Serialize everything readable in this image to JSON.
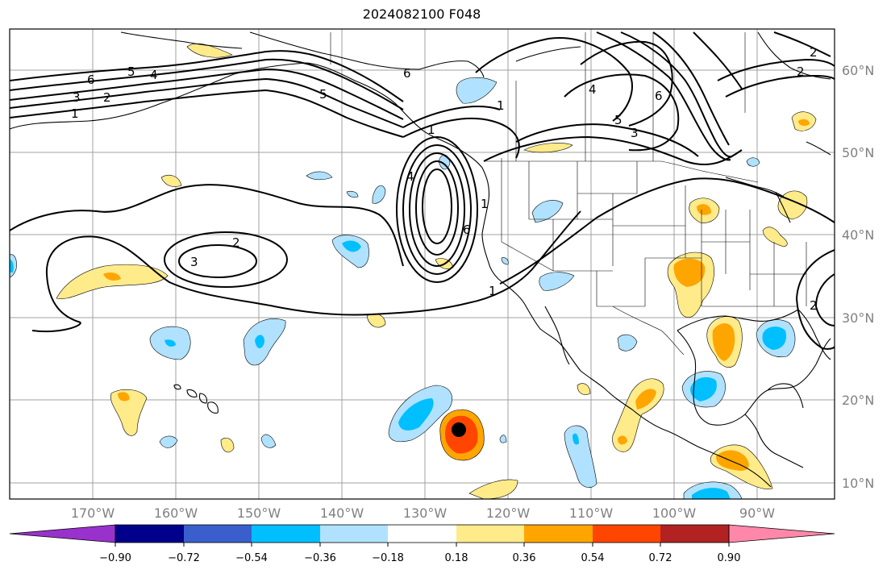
{
  "title": "2024082100 F048",
  "map": {
    "lon_labels": [
      "170°W",
      "160°W",
      "150°W",
      "140°W",
      "130°W",
      "120°W",
      "110°W",
      "100°W",
      "90°W"
    ],
    "lat_labels": [
      "60°N",
      "50°N",
      "40°N",
      "30°N",
      "20°N",
      "10°N"
    ],
    "contour_labels": [
      "6",
      "5",
      "4",
      "3",
      "2",
      "1",
      "1",
      "2",
      "6",
      "5",
      "4",
      "6",
      "4",
      "5",
      "3",
      "1",
      "3",
      "2",
      "1",
      "2",
      "6",
      "1",
      "2"
    ],
    "marker": "storm-center-dot"
  },
  "colorbar": {
    "ticks": [
      "−0.90",
      "−0.72",
      "−0.54",
      "−0.36",
      "−0.18",
      "0.18",
      "0.36",
      "0.54",
      "0.72",
      "0.90"
    ],
    "colors": [
      "#9932cc",
      "#00008b",
      "#3a5fcd",
      "#00bfff",
      "#b0e2ff",
      "#ffffff",
      "#ffeb8a",
      "#ffa500",
      "#ff4500",
      "#b22222",
      "#ff88aa"
    ]
  },
  "palette": {
    "light_blue": "#b0e2ff",
    "blue": "#00bfff",
    "yellow": "#ffeb8a",
    "orange": "#ffa500",
    "red_orange": "#ff4500"
  }
}
